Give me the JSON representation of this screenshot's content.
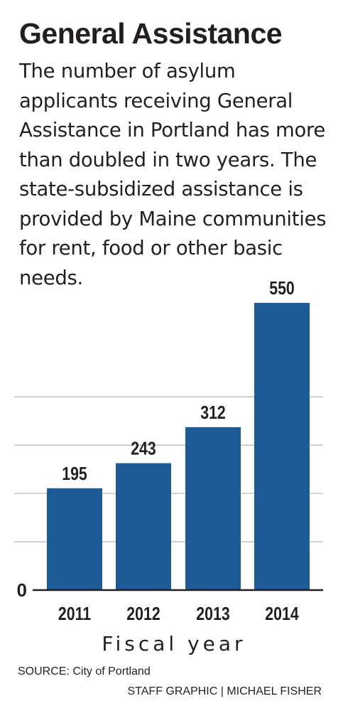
{
  "title": "General Assistance",
  "subtitle": "The number of asylum applicants receiving General Assistance in Portland has more than doubled in two years. The state-subsidized assistance is provided by Maine communities for rent, food or other basic needs.",
  "source": "SOURCE: City of Portland",
  "credit": "STAFF GRAPHIC | MICHAEL FISHER",
  "colors": {
    "bar": "#1e5a96",
    "grid": "#c8c8c8",
    "text": "#231f20"
  },
  "chart_data": {
    "type": "bar",
    "categories": [
      "2011",
      "2012",
      "2013",
      "2014"
    ],
    "values": [
      195,
      243,
      312,
      550
    ],
    "xlabel": "Fiscal year",
    "ylabel": "",
    "ylim": [
      0,
      600
    ],
    "y_ticks": [
      {
        "value": 0,
        "label": "0"
      }
    ],
    "grid": true
  }
}
